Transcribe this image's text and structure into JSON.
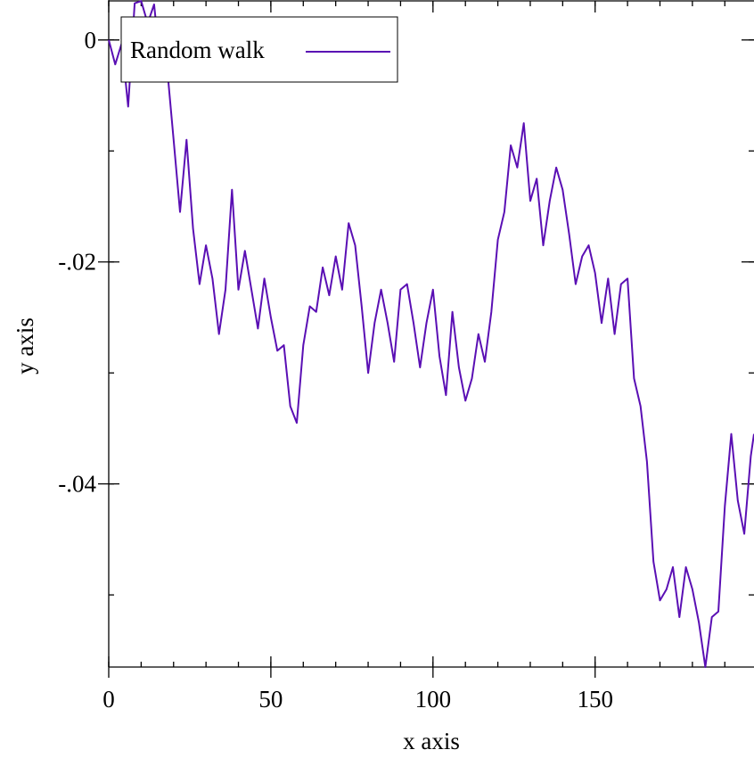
{
  "chart_data": {
    "type": "line",
    "xlabel": "x axis",
    "ylabel": "y axis",
    "xlim": [
      0,
      199
    ],
    "ylim": [
      -0.0565,
      0.0036
    ],
    "x_ticks": [
      0,
      50,
      100,
      150
    ],
    "x_tick_labels": [
      "0",
      "50",
      "100",
      "150"
    ],
    "x_minor_step": 10,
    "y_ticks": [
      0,
      -0.02,
      -0.04
    ],
    "y_tick_labels": [
      "0",
      "-.02",
      "-.04"
    ],
    "y_minor_step": 0.01,
    "legend": "top-left",
    "grid": false,
    "series": [
      {
        "name": "Random walk",
        "color": "#5a0fb4",
        "x": [
          0,
          2,
          4,
          6,
          8,
          10,
          12,
          14,
          16,
          18,
          20,
          22,
          24,
          26,
          28,
          30,
          32,
          34,
          36,
          38,
          40,
          42,
          44,
          46,
          48,
          50,
          52,
          54,
          56,
          58,
          60,
          62,
          64,
          66,
          68,
          70,
          72,
          74,
          76,
          78,
          80,
          82,
          84,
          86,
          88,
          90,
          92,
          94,
          96,
          98,
          100,
          102,
          104,
          106,
          108,
          110,
          112,
          114,
          116,
          118,
          120,
          122,
          124,
          126,
          128,
          130,
          132,
          134,
          136,
          138,
          140,
          142,
          144,
          146,
          148,
          150,
          152,
          154,
          156,
          158,
          160,
          162,
          164,
          166,
          168,
          170,
          172,
          174,
          176,
          178,
          180,
          182,
          184,
          186,
          188,
          190,
          192,
          194,
          196,
          198,
          199
        ],
        "values": [
          0.0,
          -0.0022,
          -0.0003,
          -0.006,
          0.0033,
          0.0035,
          0.0015,
          0.0032,
          -0.0025,
          -0.0025,
          -0.009,
          -0.0155,
          -0.009,
          -0.017,
          -0.022,
          -0.0185,
          -0.0215,
          -0.0265,
          -0.0225,
          -0.0135,
          -0.0225,
          -0.019,
          -0.0225,
          -0.026,
          -0.0215,
          -0.025,
          -0.028,
          -0.0275,
          -0.033,
          -0.0345,
          -0.0275,
          -0.024,
          -0.0245,
          -0.0205,
          -0.023,
          -0.0195,
          -0.0225,
          -0.0165,
          -0.0185,
          -0.024,
          -0.03,
          -0.0255,
          -0.0225,
          -0.0255,
          -0.029,
          -0.0225,
          -0.022,
          -0.0255,
          -0.0295,
          -0.0255,
          -0.0225,
          -0.0285,
          -0.032,
          -0.0245,
          -0.0295,
          -0.0325,
          -0.0305,
          -0.0265,
          -0.029,
          -0.0245,
          -0.018,
          -0.0155,
          -0.0095,
          -0.0115,
          -0.0075,
          -0.0145,
          -0.0125,
          -0.0185,
          -0.0145,
          -0.0115,
          -0.0135,
          -0.0175,
          -0.022,
          -0.0195,
          -0.0185,
          -0.021,
          -0.0255,
          -0.0215,
          -0.0265,
          -0.022,
          -0.0215,
          -0.0305,
          -0.033,
          -0.038,
          -0.047,
          -0.0505,
          -0.0495,
          -0.0475,
          -0.052,
          -0.0475,
          -0.0495,
          -0.0525,
          -0.0565,
          -0.052,
          -0.0515,
          -0.042,
          -0.0355,
          -0.0415,
          -0.0445,
          -0.0375,
          -0.0355
        ]
      }
    ]
  }
}
